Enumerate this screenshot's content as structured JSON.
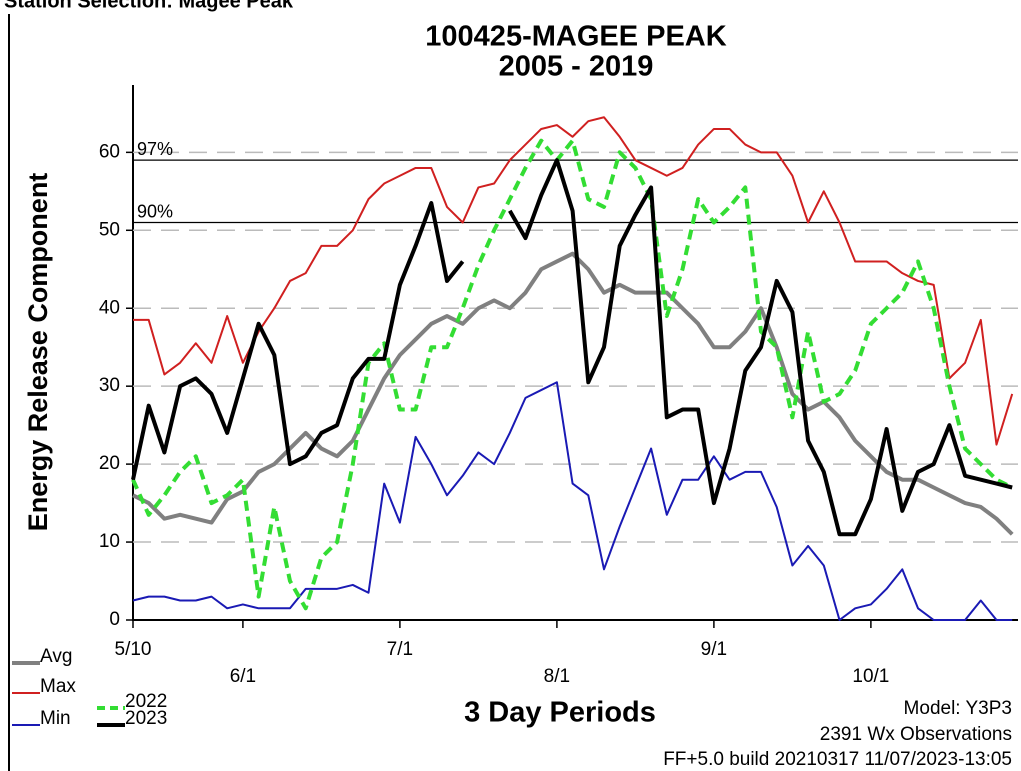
{
  "header": "Station Selection: Magee Peak",
  "chart_data": {
    "type": "line",
    "title": "100425-MAGEE PEAK",
    "subtitle": "2005 - 2019",
    "x_label": "3 Day Periods",
    "y_label": "Energy Release Component",
    "notes": [
      "Model: Y3P3",
      "2391 Wx Observations",
      "FF+5.0 build 20210317 11/07/2023-13:05"
    ],
    "x": [
      0,
      1,
      2,
      3,
      4,
      5,
      6,
      7,
      8,
      9,
      10,
      11,
      12,
      13,
      14,
      15,
      16,
      17,
      18,
      19,
      20,
      21,
      22,
      23,
      24,
      25,
      26,
      27,
      28,
      29,
      30,
      31,
      32,
      33,
      34,
      35,
      36,
      37,
      38,
      39,
      40,
      41,
      42,
      43,
      44,
      45,
      46,
      47,
      48,
      49,
      50,
      51,
      52,
      53,
      54,
      55,
      56
    ],
    "xlim": [
      0,
      56.37
    ],
    "xticks": [
      {
        "value": 0,
        "label": "5/10"
      },
      {
        "value": 7,
        "label": "6/1"
      },
      {
        "value": 17,
        "label": "7/1"
      },
      {
        "value": 27,
        "label": "8/1"
      },
      {
        "value": 37,
        "label": "9/1"
      },
      {
        "value": 47,
        "label": "10/1"
      }
    ],
    "ylim": [
      0,
      68
    ],
    "yticks": [
      0,
      10,
      20,
      30,
      40,
      50,
      60
    ],
    "grid": true,
    "reference_lines": [
      {
        "label": "97%",
        "value": 59
      },
      {
        "label": "90%",
        "value": 51
      }
    ],
    "series": [
      {
        "name": "Avg",
        "color": "#808080",
        "dashed": false,
        "values": [
          16,
          15,
          13,
          13.5,
          13,
          12.5,
          15.5,
          16.5,
          19,
          20,
          22,
          24,
          22,
          21,
          23,
          27,
          31,
          34,
          36,
          38,
          39,
          38,
          40,
          41,
          40,
          42,
          45,
          46,
          47,
          45,
          42,
          43,
          42,
          42,
          42,
          40,
          38,
          35,
          35,
          37,
          40,
          35,
          29,
          27,
          28,
          26,
          23,
          21,
          19,
          18,
          18,
          17,
          16,
          15,
          14.5,
          13,
          11
        ]
      },
      {
        "name": "Max",
        "color": "#d02020",
        "dashed": false,
        "values": [
          38.5,
          38.5,
          31.5,
          33,
          35.5,
          33,
          39,
          33,
          37,
          40,
          43.5,
          44.5,
          48,
          48,
          50,
          54,
          56,
          57,
          58,
          58,
          53,
          51,
          55.5,
          56,
          59,
          61,
          63,
          63.5,
          62,
          64,
          64.5,
          62,
          59,
          58,
          57,
          58,
          61,
          63,
          63,
          61,
          60,
          60,
          57,
          51,
          55,
          51,
          46,
          46,
          46,
          44.5,
          43.5,
          43,
          31,
          33,
          38.5,
          22.5,
          29
        ]
      },
      {
        "name": "Min",
        "color": "#1a1ab4",
        "dashed": false,
        "values": [
          2.5,
          3,
          3,
          2.5,
          2.5,
          3,
          1.5,
          2,
          1.5,
          1.5,
          1.5,
          4,
          4,
          4,
          4.5,
          3.5,
          17.5,
          12.5,
          23.5,
          20,
          16,
          18.5,
          21.5,
          20,
          24,
          28.5,
          29.5,
          30.5,
          17.5,
          16,
          6.5,
          12,
          17,
          22,
          13.5,
          18,
          18,
          21,
          18,
          19,
          19,
          14.5,
          7,
          9.5,
          7,
          0,
          1.5,
          2,
          4,
          6.5,
          1.5,
          0,
          0,
          0,
          2.5,
          0,
          0
        ]
      },
      {
        "name": "2022",
        "color": "#33dd33",
        "dashed": true,
        "values": [
          18,
          13.5,
          16,
          19,
          21,
          15,
          16,
          18,
          3,
          14.5,
          5,
          1.5,
          8,
          10,
          20,
          33,
          35.5,
          27,
          27,
          35,
          35,
          40,
          45.5,
          50,
          54,
          58,
          61.5,
          59,
          61.5,
          54,
          53,
          60,
          58,
          54,
          39,
          45,
          54,
          51,
          53,
          55.5,
          37,
          35,
          26,
          37,
          28,
          29,
          32,
          38,
          40,
          42,
          46,
          40,
          30,
          22,
          20,
          18,
          17
        ]
      },
      {
        "name": "2023",
        "color": "#000000",
        "dashed": false,
        "values": [
          18,
          27.5,
          21.5,
          30,
          31,
          29,
          24,
          31,
          38,
          34,
          20,
          21,
          24,
          25,
          31,
          33.5,
          33.5,
          43,
          48,
          53.5,
          43.5,
          46,
          null,
          null,
          52.5,
          49,
          54.5,
          59,
          52.5,
          30.5,
          35,
          48,
          52,
          55.5,
          26,
          27,
          27,
          15,
          22,
          32,
          35,
          43.5,
          39.5,
          23,
          19,
          11,
          11,
          15.5,
          24.5,
          14,
          19,
          20,
          25,
          18.5,
          18,
          17.5,
          17
        ]
      }
    ]
  }
}
